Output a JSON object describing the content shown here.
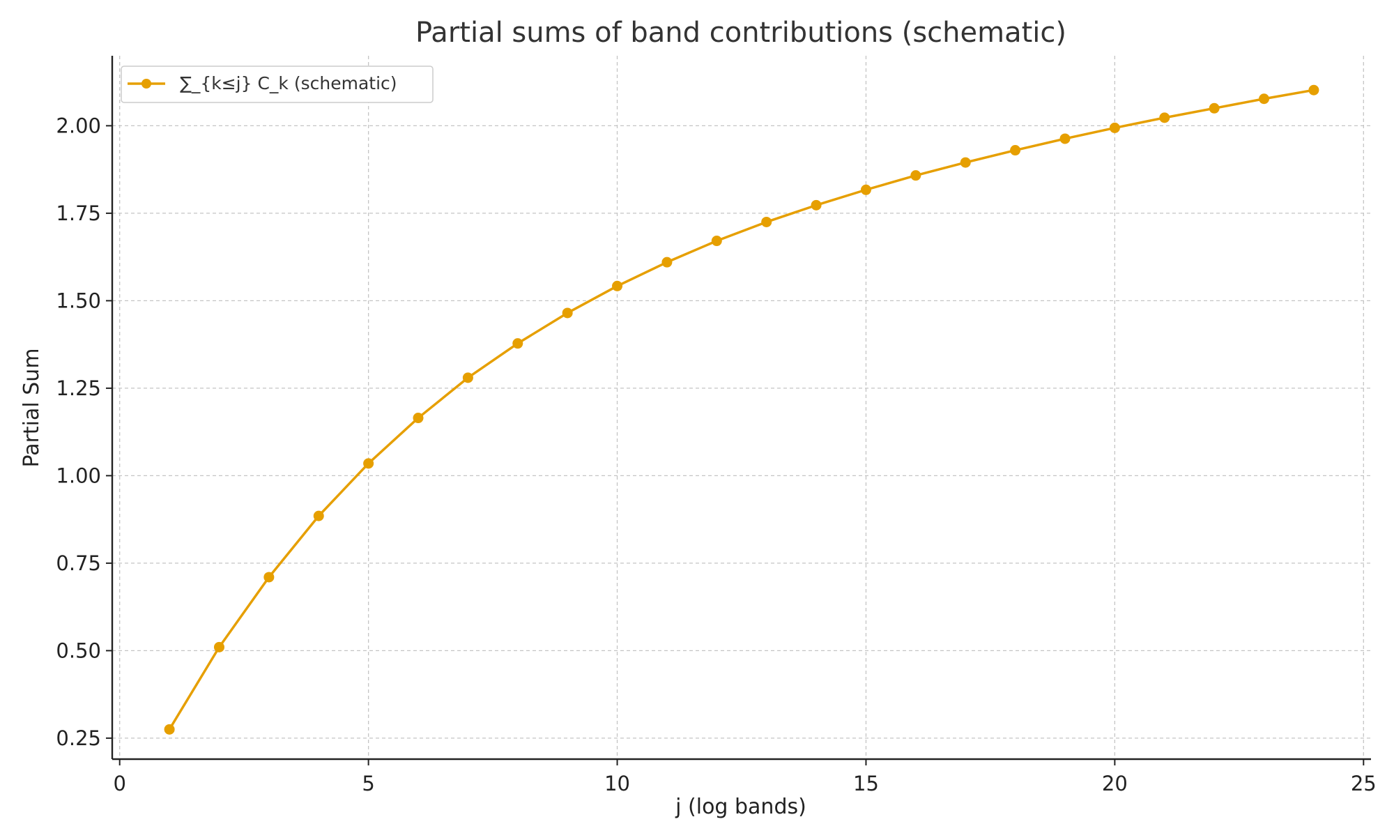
{
  "chart_data": {
    "type": "line",
    "title": "Partial sums of band contributions (schematic)",
    "xlabel": "j (log bands)",
    "ylabel": "Partial Sum",
    "xlim": [
      -0.15,
      25.15
    ],
    "ylim": [
      0.19,
      2.2
    ],
    "xticks": [
      0,
      5,
      10,
      15,
      20,
      25
    ],
    "xtick_labels": [
      "0",
      "5",
      "10",
      "15",
      "20",
      "25"
    ],
    "yticks": [
      0.25,
      0.5,
      0.75,
      1.0,
      1.25,
      1.5,
      1.75,
      2.0
    ],
    "ytick_labels": [
      "0.25",
      "0.50",
      "0.75",
      "1.00",
      "1.25",
      "1.50",
      "1.75",
      "2.00"
    ],
    "grid": true,
    "legend_position": "top-left",
    "series": [
      {
        "name": "∑_{k≤j} C_k (schematic)",
        "color": "#E69F00",
        "marker": "circle",
        "x": [
          1,
          2,
          3,
          4,
          5,
          6,
          7,
          8,
          9,
          10,
          11,
          12,
          13,
          14,
          15,
          16,
          17,
          18,
          19,
          20,
          21,
          22,
          23,
          24
        ],
        "y": [
          0.275,
          0.51,
          0.71,
          0.885,
          1.035,
          1.165,
          1.28,
          1.378,
          1.465,
          1.542,
          1.61,
          1.671,
          1.725,
          1.773,
          1.817,
          1.858,
          1.895,
          1.93,
          1.963,
          1.994,
          2.023,
          2.05,
          2.077,
          2.102
        ]
      }
    ]
  }
}
